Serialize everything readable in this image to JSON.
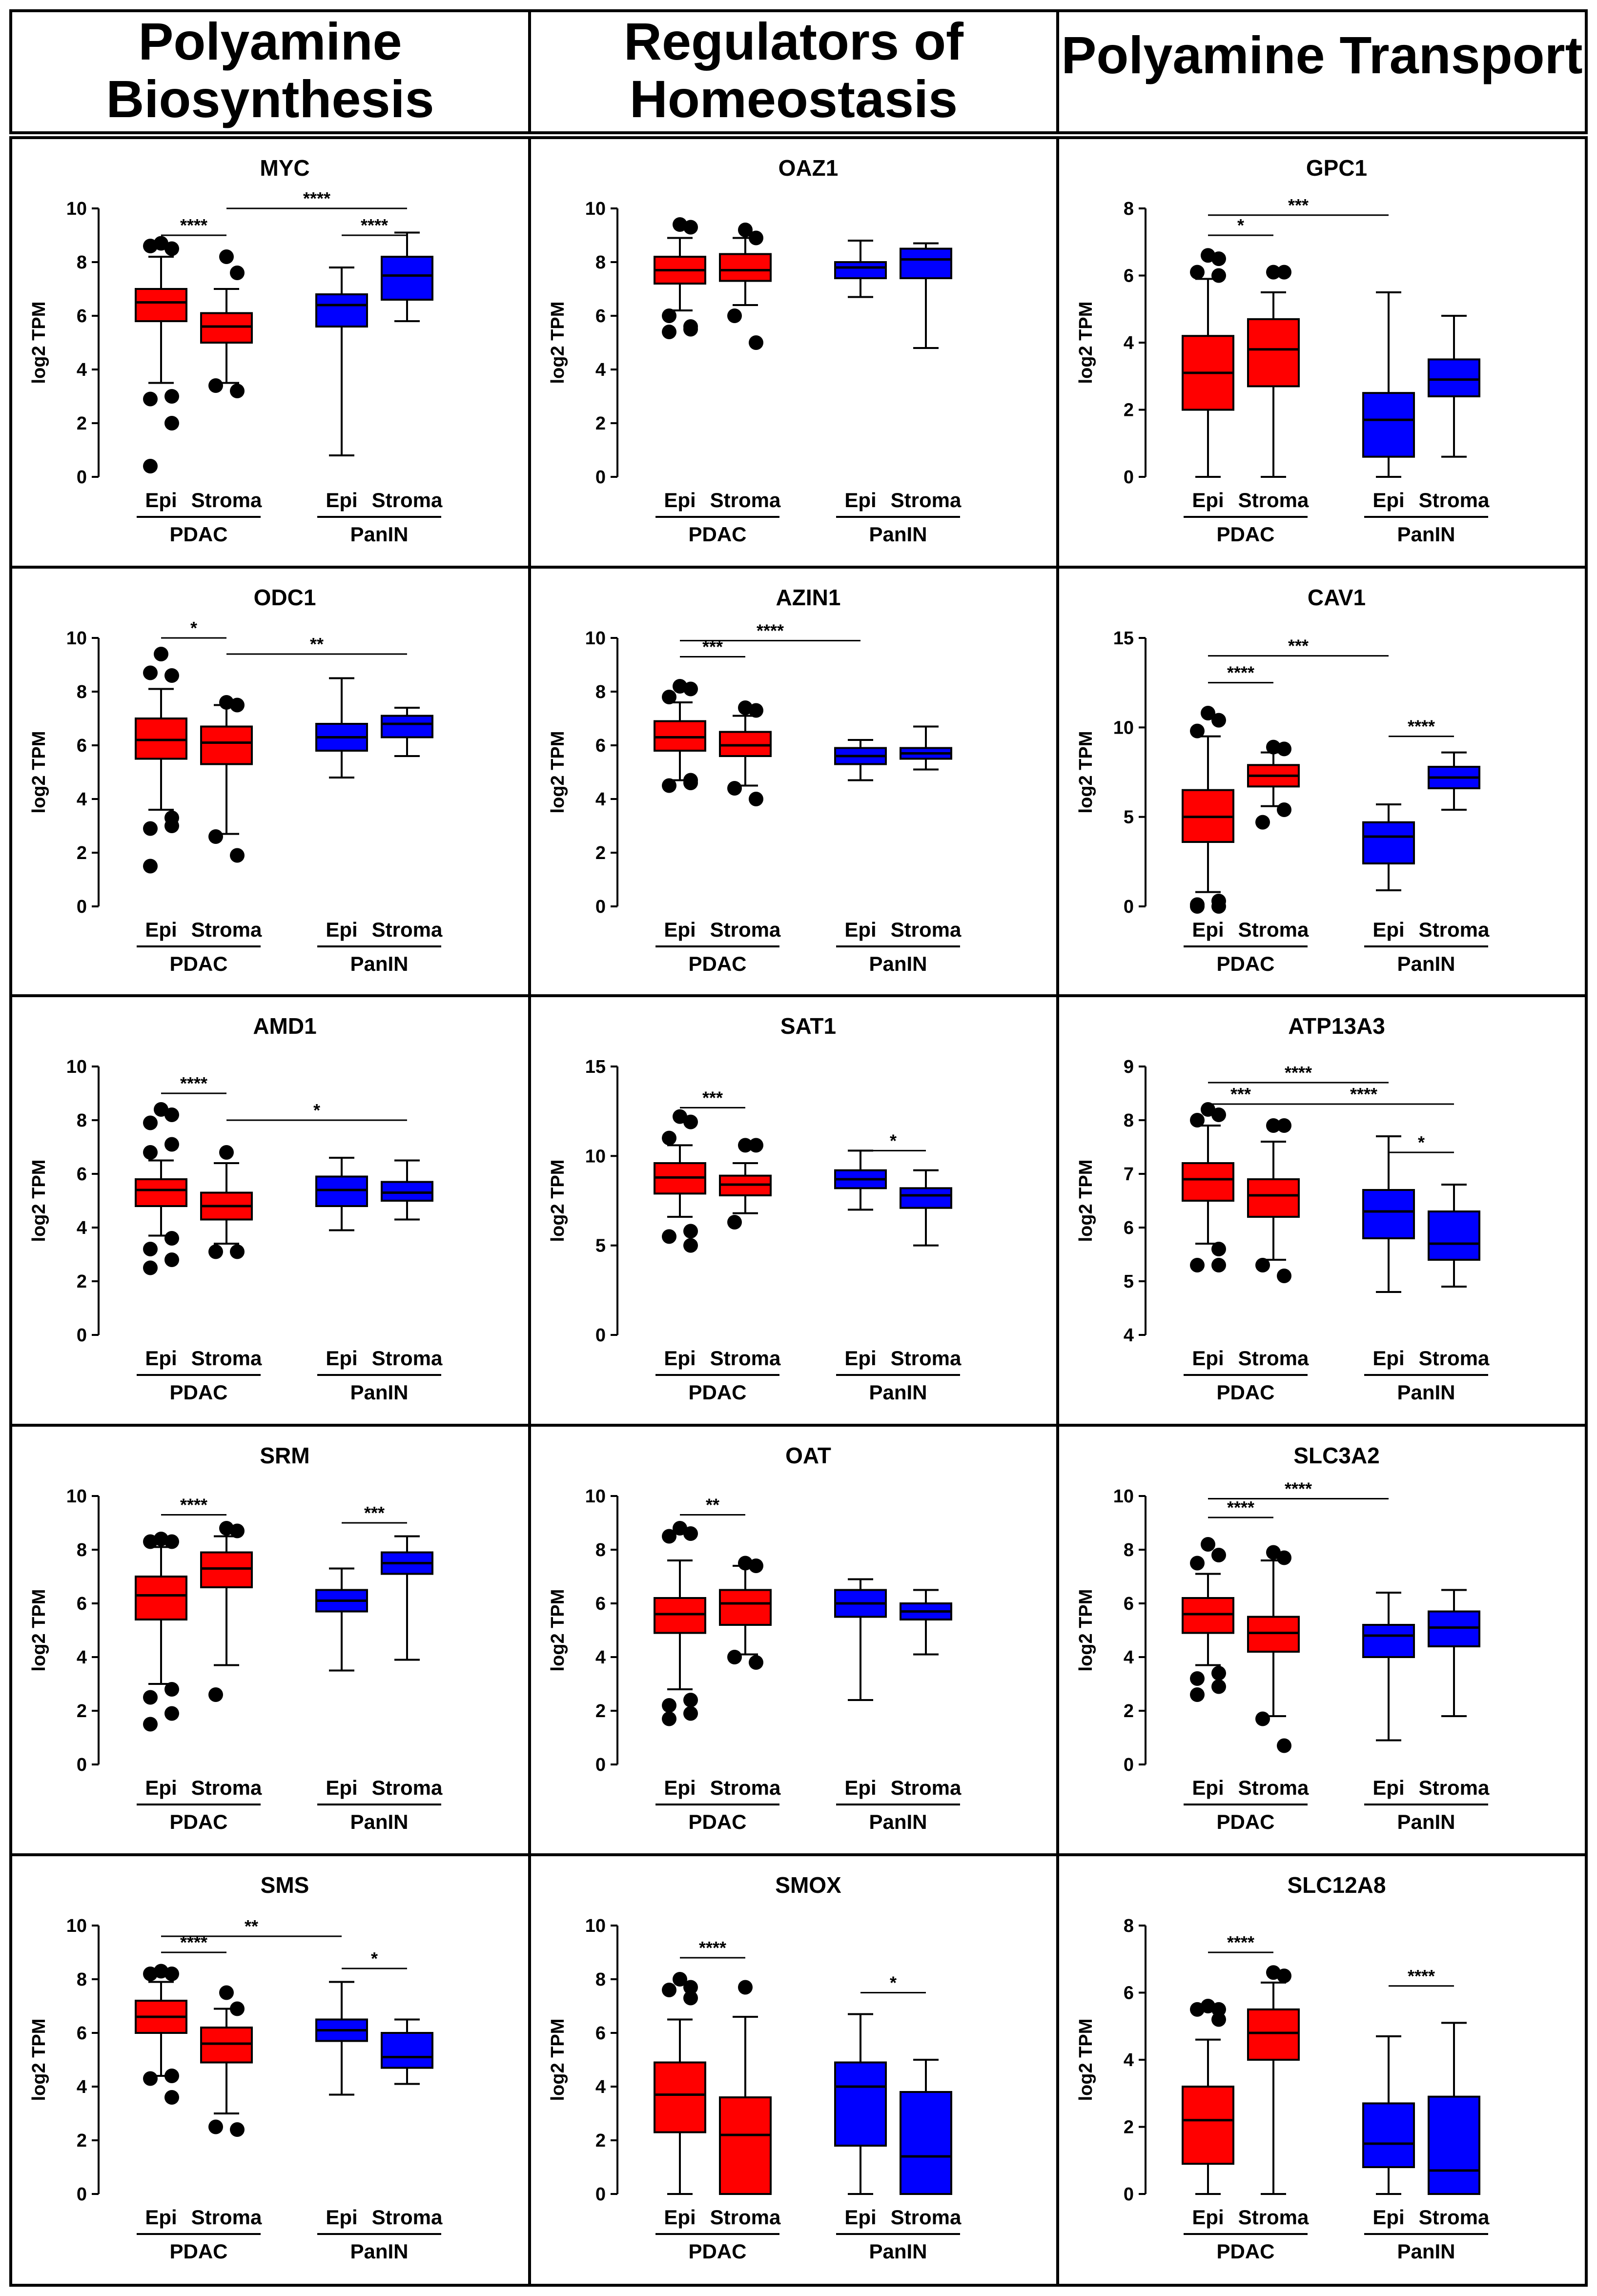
{
  "headers": [
    "Polyamine\nBiosynthesis",
    "Regulators of\nHomeostasis",
    "Polyamine Transport"
  ],
  "ylabel": "log2 TPM",
  "group_labels": [
    "PDAC",
    "PanIN"
  ],
  "box_labels": [
    "Epi",
    "Stroma",
    "Epi",
    "Stroma"
  ],
  "colors": {
    "pdac": "#ff0000",
    "panin": "#0000ff",
    "edge": "#000000"
  },
  "chart_data": [
    {
      "type": "box",
      "title": "MYC",
      "ylim": [
        0,
        10
      ],
      "yticks": [
        0,
        2,
        4,
        6,
        8,
        10
      ],
      "boxes": [
        {
          "q1": 5.8,
          "med": 6.5,
          "q3": 7.0,
          "lo": 3.5,
          "hi": 8.2,
          "out": [
            8.7,
            8.5,
            8.6,
            3.0,
            2.9,
            2.0,
            0.4
          ]
        },
        {
          "q1": 5.0,
          "med": 5.6,
          "q3": 6.1,
          "lo": 3.5,
          "hi": 7.0,
          "out": [
            8.2,
            7.6,
            3.4,
            3.2
          ]
        },
        {
          "q1": 5.6,
          "med": 6.4,
          "q3": 6.8,
          "lo": 0.8,
          "hi": 7.8,
          "out": []
        },
        {
          "q1": 6.6,
          "med": 7.5,
          "q3": 8.2,
          "lo": 5.8,
          "hi": 9.1,
          "out": []
        }
      ],
      "sig": [
        {
          "a": 0,
          "b": 1,
          "y": 9.0,
          "label": "****"
        },
        {
          "a": 1,
          "b": 3,
          "y": 10.0,
          "label": "****"
        },
        {
          "a": 2,
          "b": 3,
          "y": 9.0,
          "label": "****"
        }
      ]
    },
    {
      "type": "box",
      "title": "OAZ1",
      "ylim": [
        0,
        10
      ],
      "yticks": [
        0,
        2,
        4,
        6,
        8,
        10
      ],
      "boxes": [
        {
          "q1": 7.2,
          "med": 7.7,
          "q3": 8.2,
          "lo": 6.2,
          "hi": 8.9,
          "out": [
            9.4,
            9.3,
            6.0,
            5.5,
            5.4,
            5.6
          ]
        },
        {
          "q1": 7.3,
          "med": 7.7,
          "q3": 8.3,
          "lo": 6.4,
          "hi": 8.9,
          "out": [
            9.2,
            8.9,
            6.0,
            5.0
          ]
        },
        {
          "q1": 7.4,
          "med": 7.8,
          "q3": 8.0,
          "lo": 6.7,
          "hi": 8.8,
          "out": []
        },
        {
          "q1": 7.4,
          "med": 8.1,
          "q3": 8.5,
          "lo": 4.8,
          "hi": 8.7,
          "out": []
        }
      ],
      "sig": []
    },
    {
      "type": "box",
      "title": "GPC1",
      "ylim": [
        0,
        8
      ],
      "yticks": [
        0,
        2,
        4,
        6,
        8
      ],
      "boxes": [
        {
          "q1": 2.0,
          "med": 3.1,
          "q3": 4.2,
          "lo": 0.0,
          "hi": 5.9,
          "out": [
            6.6,
            6.5,
            6.1,
            6.0
          ]
        },
        {
          "q1": 2.7,
          "med": 3.8,
          "q3": 4.7,
          "lo": 0.0,
          "hi": 5.5,
          "out": [
            6.1,
            6.1
          ]
        },
        {
          "q1": 0.6,
          "med": 1.7,
          "q3": 2.5,
          "lo": 0.0,
          "hi": 5.5,
          "out": []
        },
        {
          "q1": 2.4,
          "med": 2.9,
          "q3": 3.5,
          "lo": 0.6,
          "hi": 4.8,
          "out": []
        }
      ],
      "sig": [
        {
          "a": 0,
          "b": 1,
          "y": 7.2,
          "label": "*"
        },
        {
          "a": 0,
          "b": 2,
          "y": 7.8,
          "label": "***"
        }
      ]
    },
    {
      "type": "box",
      "title": "ODC1",
      "ylim": [
        0,
        10
      ],
      "yticks": [
        0,
        2,
        4,
        6,
        8,
        10
      ],
      "boxes": [
        {
          "q1": 5.5,
          "med": 6.2,
          "q3": 7.0,
          "lo": 3.6,
          "hi": 8.1,
          "out": [
            9.4,
            8.6,
            8.7,
            3.0,
            2.9,
            3.3,
            1.5
          ]
        },
        {
          "q1": 5.3,
          "med": 6.1,
          "q3": 6.7,
          "lo": 2.7,
          "hi": 7.5,
          "out": [
            7.6,
            7.5,
            2.6,
            1.9
          ]
        },
        {
          "q1": 5.8,
          "med": 6.3,
          "q3": 6.8,
          "lo": 4.8,
          "hi": 8.5,
          "out": []
        },
        {
          "q1": 6.3,
          "med": 6.8,
          "q3": 7.1,
          "lo": 5.6,
          "hi": 7.4,
          "out": []
        }
      ],
      "sig": [
        {
          "a": 0,
          "b": 1,
          "y": 10.0,
          "label": "*"
        },
        {
          "a": 1,
          "b": 3,
          "y": 9.4,
          "label": "**"
        }
      ]
    },
    {
      "type": "box",
      "title": "AZIN1",
      "ylim": [
        0,
        10
      ],
      "yticks": [
        0,
        2,
        4,
        6,
        8,
        10
      ],
      "boxes": [
        {
          "q1": 5.8,
          "med": 6.3,
          "q3": 6.9,
          "lo": 4.7,
          "hi": 7.6,
          "out": [
            8.2,
            8.1,
            7.8,
            4.7,
            4.5,
            4.6
          ]
        },
        {
          "q1": 5.6,
          "med": 6.0,
          "q3": 6.5,
          "lo": 4.5,
          "hi": 7.1,
          "out": [
            7.4,
            7.3,
            4.4,
            4.0
          ]
        },
        {
          "q1": 5.3,
          "med": 5.6,
          "q3": 5.9,
          "lo": 4.7,
          "hi": 6.2,
          "out": []
        },
        {
          "q1": 5.5,
          "med": 5.7,
          "q3": 5.9,
          "lo": 5.1,
          "hi": 6.7,
          "out": []
        }
      ],
      "sig": [
        {
          "a": 0,
          "b": 1,
          "y": 9.3,
          "label": "***"
        },
        {
          "a": 0,
          "b": 2,
          "y": 9.9,
          "label": "****"
        }
      ]
    },
    {
      "type": "box",
      "title": "CAV1",
      "ylim": [
        0,
        15
      ],
      "yticks": [
        0,
        5,
        10,
        15
      ],
      "boxes": [
        {
          "q1": 3.6,
          "med": 5.0,
          "q3": 6.5,
          "lo": 0.8,
          "hi": 9.5,
          "out": [
            10.8,
            10.4,
            9.8,
            0.3,
            0.1,
            0.0,
            0.0
          ]
        },
        {
          "q1": 6.7,
          "med": 7.3,
          "q3": 7.9,
          "lo": 5.6,
          "hi": 8.6,
          "out": [
            8.9,
            8.8,
            4.7,
            5.4
          ]
        },
        {
          "q1": 2.4,
          "med": 3.9,
          "q3": 4.7,
          "lo": 0.9,
          "hi": 5.7,
          "out": []
        },
        {
          "q1": 6.6,
          "med": 7.2,
          "q3": 7.8,
          "lo": 5.4,
          "hi": 8.6,
          "out": []
        }
      ],
      "sig": [
        {
          "a": 0,
          "b": 1,
          "y": 12.5,
          "label": "****"
        },
        {
          "a": 0,
          "b": 2,
          "y": 14.0,
          "label": "***"
        },
        {
          "a": 2,
          "b": 3,
          "y": 9.5,
          "label": "****"
        }
      ]
    },
    {
      "type": "box",
      "title": "AMD1",
      "ylim": [
        0,
        10
      ],
      "yticks": [
        0,
        2,
        4,
        6,
        8,
        10
      ],
      "boxes": [
        {
          "q1": 4.8,
          "med": 5.4,
          "q3": 5.8,
          "lo": 3.7,
          "hi": 6.5,
          "out": [
            8.4,
            8.2,
            7.9,
            7.1,
            6.8,
            3.6,
            3.2,
            2.8,
            2.5
          ]
        },
        {
          "q1": 4.3,
          "med": 4.8,
          "q3": 5.3,
          "lo": 3.4,
          "hi": 6.4,
          "out": [
            6.8,
            3.1,
            3.1
          ]
        },
        {
          "q1": 4.8,
          "med": 5.4,
          "q3": 5.9,
          "lo": 3.9,
          "hi": 6.6,
          "out": []
        },
        {
          "q1": 5.0,
          "med": 5.3,
          "q3": 5.7,
          "lo": 4.3,
          "hi": 6.5,
          "out": []
        }
      ],
      "sig": [
        {
          "a": 0,
          "b": 1,
          "y": 9.0,
          "label": "****"
        },
        {
          "a": 1,
          "b": 3,
          "y": 8.0,
          "label": "*"
        }
      ]
    },
    {
      "type": "box",
      "title": "SAT1",
      "ylim": [
        0,
        15
      ],
      "yticks": [
        0,
        5,
        10,
        15
      ],
      "boxes": [
        {
          "q1": 7.9,
          "med": 8.8,
          "q3": 9.6,
          "lo": 6.6,
          "hi": 10.6,
          "out": [
            12.2,
            11.9,
            11.0,
            5.8,
            5.5,
            5.0
          ]
        },
        {
          "q1": 7.8,
          "med": 8.4,
          "q3": 8.9,
          "lo": 6.8,
          "hi": 9.6,
          "out": [
            10.6,
            10.6,
            6.3
          ]
        },
        {
          "q1": 8.2,
          "med": 8.7,
          "q3": 9.2,
          "lo": 7.0,
          "hi": 10.3,
          "out": []
        },
        {
          "q1": 7.1,
          "med": 7.8,
          "q3": 8.2,
          "lo": 5.0,
          "hi": 9.2,
          "out": []
        }
      ],
      "sig": [
        {
          "a": 0,
          "b": 1,
          "y": 12.7,
          "label": "***"
        },
        {
          "a": 2,
          "b": 3,
          "y": 10.3,
          "label": "*"
        }
      ]
    },
    {
      "type": "box",
      "title": "ATP13A3",
      "ylim": [
        4,
        9
      ],
      "yticks": [
        4,
        5,
        6,
        7,
        8,
        9
      ],
      "boxes": [
        {
          "q1": 6.5,
          "med": 6.9,
          "q3": 7.2,
          "lo": 5.7,
          "hi": 7.9,
          "out": [
            8.2,
            8.1,
            8.0,
            5.6,
            5.3,
            5.3
          ]
        },
        {
          "q1": 6.2,
          "med": 6.6,
          "q3": 6.9,
          "lo": 5.4,
          "hi": 7.6,
          "out": [
            7.9,
            7.9,
            5.3,
            5.1
          ]
        },
        {
          "q1": 5.8,
          "med": 6.3,
          "q3": 6.7,
          "lo": 4.8,
          "hi": 7.7,
          "out": []
        },
        {
          "q1": 5.4,
          "med": 5.7,
          "q3": 6.3,
          "lo": 4.9,
          "hi": 6.8,
          "out": []
        }
      ],
      "sig": [
        {
          "a": 0,
          "b": 1,
          "y": 8.3,
          "label": "***"
        },
        {
          "a": 0,
          "b": 2,
          "y": 8.7,
          "label": "****"
        },
        {
          "a": 1,
          "b": 3,
          "y": 8.3,
          "label": "****"
        },
        {
          "a": 2,
          "b": 3,
          "y": 7.4,
          "label": "*"
        }
      ]
    },
    {
      "type": "box",
      "title": "SRM",
      "ylim": [
        0,
        10
      ],
      "yticks": [
        0,
        2,
        4,
        6,
        8,
        10
      ],
      "boxes": [
        {
          "q1": 5.4,
          "med": 6.3,
          "q3": 7.0,
          "lo": 3.0,
          "hi": 8.1,
          "out": [
            8.4,
            8.3,
            8.3,
            2.8,
            2.5,
            1.9,
            1.5
          ]
        },
        {
          "q1": 6.6,
          "med": 7.3,
          "q3": 7.9,
          "lo": 3.7,
          "hi": 8.5,
          "out": [
            8.8,
            8.7,
            2.6
          ]
        },
        {
          "q1": 5.7,
          "med": 6.1,
          "q3": 6.5,
          "lo": 3.5,
          "hi": 7.3,
          "out": []
        },
        {
          "q1": 7.1,
          "med": 7.5,
          "q3": 7.9,
          "lo": 3.9,
          "hi": 8.5,
          "out": []
        }
      ],
      "sig": [
        {
          "a": 0,
          "b": 1,
          "y": 9.3,
          "label": "****"
        },
        {
          "a": 2,
          "b": 3,
          "y": 9.0,
          "label": "***"
        }
      ]
    },
    {
      "type": "box",
      "title": "OAT",
      "ylim": [
        0,
        10
      ],
      "yticks": [
        0,
        2,
        4,
        6,
        8,
        10
      ],
      "boxes": [
        {
          "q1": 4.9,
          "med": 5.6,
          "q3": 6.2,
          "lo": 2.8,
          "hi": 7.6,
          "out": [
            8.8,
            8.6,
            8.5,
            2.4,
            2.2,
            1.9,
            1.7
          ]
        },
        {
          "q1": 5.2,
          "med": 6.0,
          "q3": 6.5,
          "lo": 4.1,
          "hi": 7.4,
          "out": [
            7.5,
            7.4,
            4.0,
            3.8
          ]
        },
        {
          "q1": 5.5,
          "med": 6.0,
          "q3": 6.5,
          "lo": 2.4,
          "hi": 6.9,
          "out": []
        },
        {
          "q1": 5.4,
          "med": 5.7,
          "q3": 6.0,
          "lo": 4.1,
          "hi": 6.5,
          "out": []
        }
      ],
      "sig": [
        {
          "a": 0,
          "b": 1,
          "y": 9.3,
          "label": "**"
        }
      ]
    },
    {
      "type": "box",
      "title": "SLC3A2",
      "ylim": [
        0,
        10
      ],
      "yticks": [
        0,
        2,
        4,
        6,
        8,
        10
      ],
      "boxes": [
        {
          "q1": 4.9,
          "med": 5.6,
          "q3": 6.2,
          "lo": 3.7,
          "hi": 7.1,
          "out": [
            8.2,
            7.8,
            7.5,
            3.4,
            3.2,
            2.9,
            2.6
          ]
        },
        {
          "q1": 4.2,
          "med": 4.9,
          "q3": 5.5,
          "lo": 1.8,
          "hi": 7.6,
          "out": [
            7.9,
            7.7,
            1.7,
            0.7
          ]
        },
        {
          "q1": 4.0,
          "med": 4.8,
          "q3": 5.2,
          "lo": 0.9,
          "hi": 6.4,
          "out": []
        },
        {
          "q1": 4.4,
          "med": 5.1,
          "q3": 5.7,
          "lo": 1.8,
          "hi": 6.5,
          "out": []
        }
      ],
      "sig": [
        {
          "a": 0,
          "b": 1,
          "y": 9.2,
          "label": "****"
        },
        {
          "a": 0,
          "b": 2,
          "y": 9.9,
          "label": "****"
        }
      ]
    },
    {
      "type": "box",
      "title": "SMS",
      "ylim": [
        0,
        10
      ],
      "yticks": [
        0,
        2,
        4,
        6,
        8,
        10
      ],
      "boxes": [
        {
          "q1": 6.0,
          "med": 6.6,
          "q3": 7.2,
          "lo": 4.4,
          "hi": 7.9,
          "out": [
            8.3,
            8.2,
            8.2,
            4.4,
            4.3,
            3.6
          ]
        },
        {
          "q1": 4.9,
          "med": 5.6,
          "q3": 6.2,
          "lo": 3.0,
          "hi": 6.9,
          "out": [
            7.5,
            6.9,
            2.5,
            2.4
          ]
        },
        {
          "q1": 5.7,
          "med": 6.1,
          "q3": 6.5,
          "lo": 3.7,
          "hi": 7.9,
          "out": []
        },
        {
          "q1": 4.7,
          "med": 5.1,
          "q3": 6.0,
          "lo": 4.1,
          "hi": 6.5,
          "out": []
        }
      ],
      "sig": [
        {
          "a": 0,
          "b": 1,
          "y": 9.0,
          "label": "****"
        },
        {
          "a": 0,
          "b": 2,
          "y": 9.6,
          "label": "**"
        },
        {
          "a": 2,
          "b": 3,
          "y": 8.4,
          "label": "*"
        }
      ]
    },
    {
      "type": "box",
      "title": "SMOX",
      "ylim": [
        0,
        10
      ],
      "yticks": [
        0,
        2,
        4,
        6,
        8,
        10
      ],
      "boxes": [
        {
          "q1": 2.3,
          "med": 3.7,
          "q3": 4.9,
          "lo": 0.0,
          "hi": 6.5,
          "out": [
            8.0,
            7.7,
            7.6,
            7.3
          ]
        },
        {
          "q1": 0.0,
          "med": 2.2,
          "q3": 3.6,
          "lo": 0.0,
          "hi": 6.6,
          "out": [
            7.7
          ]
        },
        {
          "q1": 1.8,
          "med": 4.0,
          "q3": 4.9,
          "lo": 0.0,
          "hi": 6.7,
          "out": []
        },
        {
          "q1": 0.0,
          "med": 1.4,
          "q3": 3.8,
          "lo": 0.0,
          "hi": 5.0,
          "out": []
        }
      ],
      "sig": [
        {
          "a": 0,
          "b": 1,
          "y": 8.8,
          "label": "****"
        },
        {
          "a": 2,
          "b": 3,
          "y": 7.5,
          "label": "*"
        }
      ]
    },
    {
      "type": "box",
      "title": "SLC12A8",
      "ylim": [
        0,
        8
      ],
      "yticks": [
        0,
        2,
        4,
        6,
        8
      ],
      "boxes": [
        {
          "q1": 0.9,
          "med": 2.2,
          "q3": 3.2,
          "lo": 0.0,
          "hi": 4.6,
          "out": [
            5.6,
            5.5,
            5.5,
            5.2
          ]
        },
        {
          "q1": 4.0,
          "med": 4.8,
          "q3": 5.5,
          "lo": 0.0,
          "hi": 6.3,
          "out": [
            6.6,
            6.5
          ]
        },
        {
          "q1": 0.8,
          "med": 1.5,
          "q3": 2.7,
          "lo": 0.0,
          "hi": 4.7,
          "out": []
        },
        {
          "q1": 0.0,
          "med": 0.7,
          "q3": 2.9,
          "lo": 0.0,
          "hi": 5.1,
          "out": []
        }
      ],
      "sig": [
        {
          "a": 0,
          "b": 1,
          "y": 7.2,
          "label": "****"
        },
        {
          "a": 2,
          "b": 3,
          "y": 6.2,
          "label": "****"
        }
      ]
    }
  ]
}
